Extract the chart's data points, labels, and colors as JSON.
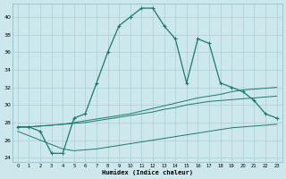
{
  "xlabel": "Humidex (Indice chaleur)",
  "bg_color": "#cce8ec",
  "grid_color": "#aacdd4",
  "line_color": "#1a7a6e",
  "xlim": [
    -0.5,
    23.5
  ],
  "ylim": [
    23.5,
    41.5
  ],
  "yticks": [
    24,
    26,
    28,
    30,
    32,
    34,
    36,
    38,
    40
  ],
  "xticks": [
    0,
    1,
    2,
    3,
    4,
    5,
    6,
    7,
    8,
    9,
    10,
    11,
    12,
    13,
    14,
    15,
    16,
    17,
    18,
    19,
    20,
    21,
    22,
    23
  ],
  "series1_x": [
    0,
    1,
    2,
    3,
    4,
    5,
    6,
    7,
    8,
    9,
    10,
    11,
    12,
    13,
    14,
    15,
    16,
    17,
    18,
    19,
    20,
    21,
    22,
    23
  ],
  "series1_y": [
    27.5,
    27.5,
    27.0,
    24.5,
    24.5,
    28.5,
    29.0,
    32.5,
    36.0,
    39.0,
    40.0,
    41.0,
    41.0,
    39.0,
    37.5,
    32.5,
    37.5,
    37.0,
    32.5,
    32.0,
    31.5,
    30.5,
    29.0,
    28.5
  ],
  "series2_x": [
    0,
    1,
    2,
    3,
    4,
    5,
    6,
    7,
    8,
    9,
    10,
    11,
    12,
    13,
    14,
    15,
    16,
    17,
    18,
    19,
    20,
    21,
    22,
    23
  ],
  "series2_y": [
    27.5,
    27.5,
    27.6,
    27.7,
    27.8,
    28.0,
    28.2,
    28.4,
    28.6,
    28.8,
    29.0,
    29.3,
    29.6,
    29.9,
    30.2,
    30.5,
    30.8,
    31.0,
    31.2,
    31.5,
    31.7,
    31.8,
    31.9,
    32.0
  ],
  "series3_x": [
    0,
    1,
    2,
    3,
    4,
    5,
    6,
    7,
    8,
    9,
    10,
    11,
    12,
    13,
    14,
    15,
    16,
    17,
    18,
    19,
    20,
    21,
    22,
    23
  ],
  "series3_y": [
    27.5,
    27.5,
    27.6,
    27.7,
    27.8,
    27.9,
    28.0,
    28.2,
    28.4,
    28.6,
    28.8,
    29.0,
    29.2,
    29.5,
    29.7,
    30.0,
    30.2,
    30.4,
    30.5,
    30.6,
    30.7,
    30.8,
    30.9,
    31.0
  ],
  "series4_x": [
    0,
    1,
    2,
    3,
    4,
    5,
    6,
    7,
    8,
    9,
    10,
    11,
    12,
    13,
    14,
    15,
    16,
    17,
    18,
    19,
    20,
    21,
    22,
    23
  ],
  "series4_y": [
    27.0,
    26.5,
    26.0,
    25.5,
    25.0,
    24.8,
    24.9,
    25.0,
    25.2,
    25.4,
    25.6,
    25.8,
    26.0,
    26.2,
    26.4,
    26.6,
    26.8,
    27.0,
    27.2,
    27.4,
    27.5,
    27.6,
    27.7,
    27.8
  ]
}
